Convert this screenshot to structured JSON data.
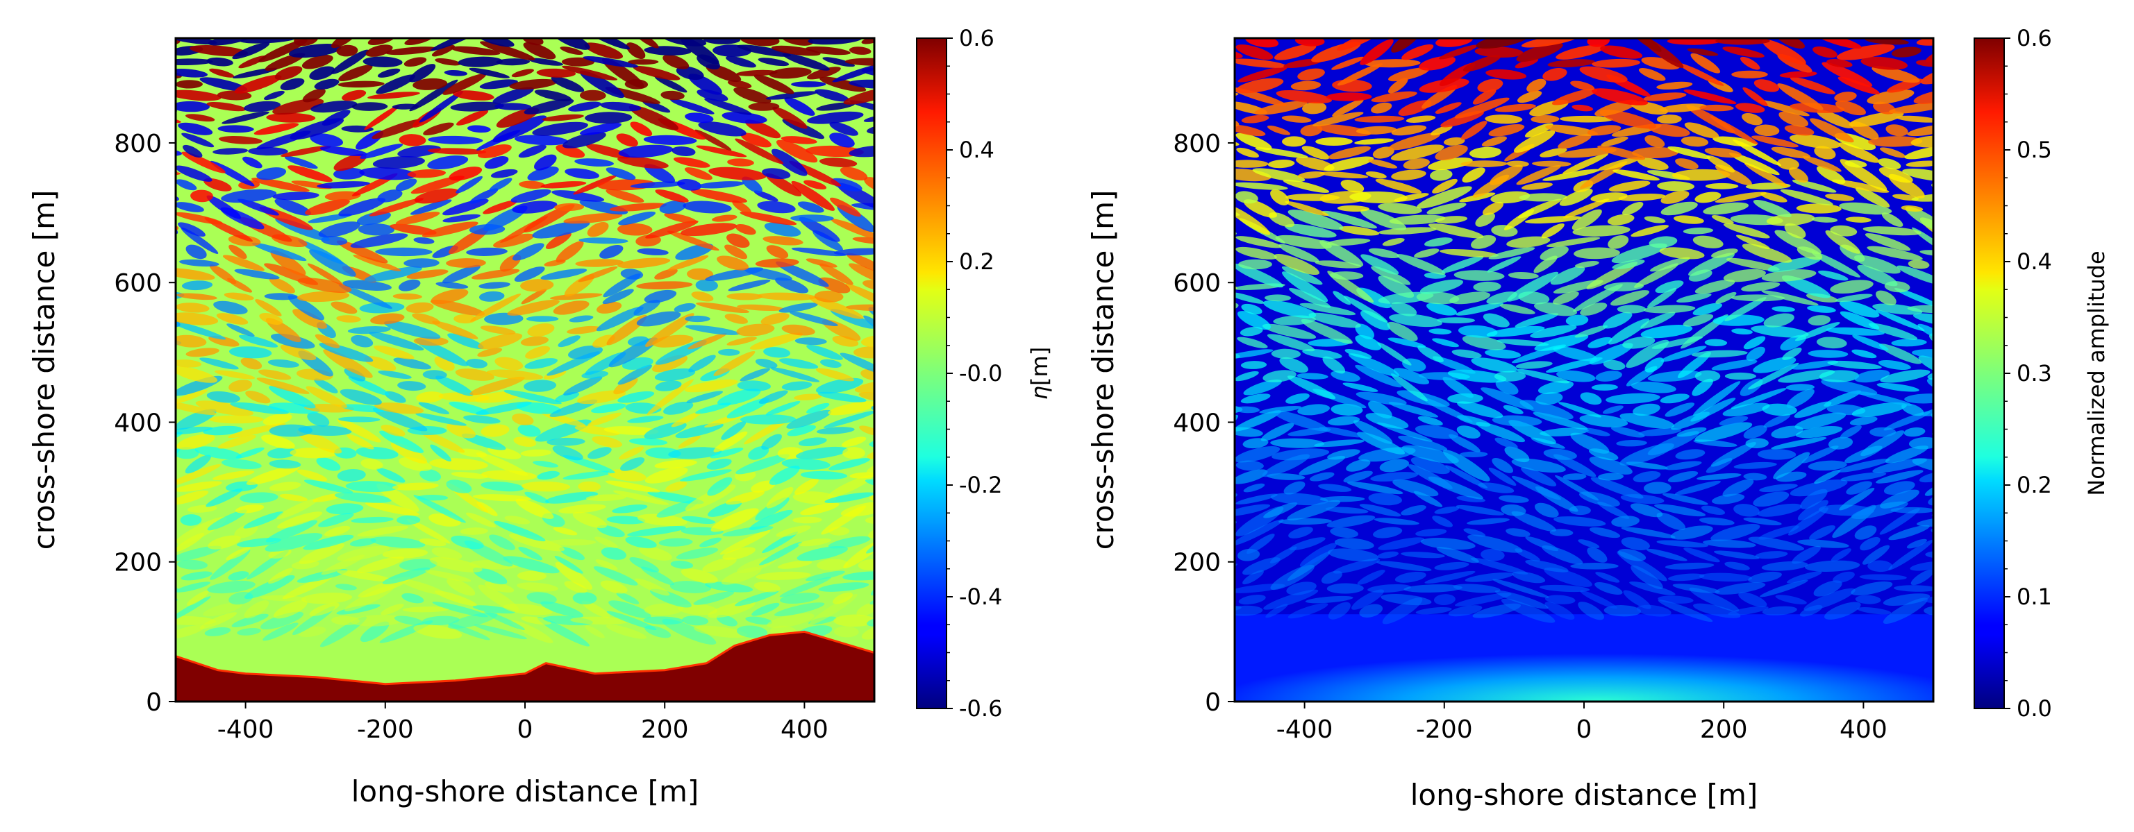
{
  "chart_data": [
    {
      "type": "heatmap",
      "name": "surface-elevation",
      "title": "",
      "xlabel": "long-shore distance [m]",
      "ylabel": "cross-shore distance [m]",
      "xlim": [
        -500,
        500
      ],
      "ylim": [
        0,
        950
      ],
      "xticks": [
        -400,
        -200,
        0,
        200,
        400
      ],
      "xtick_labels": [
        "-400",
        "-200",
        "0",
        "200",
        "400"
      ],
      "yticks": [
        0,
        200,
        400,
        600,
        800
      ],
      "ytick_labels": [
        "0",
        "200",
        "400",
        "600",
        "800"
      ],
      "colormap": "jet",
      "colorbar": {
        "label": "η[m]",
        "label_symbol": "η",
        "label_unit": "[m]",
        "range": [
          -0.6,
          0.6
        ],
        "ticks": [
          0.6,
          0.4,
          0.2,
          0.0,
          -0.2,
          -0.4,
          -0.6
        ],
        "tick_labels": [
          "0.6",
          "0.4",
          "0.2",
          "-0.0",
          "-0.2",
          "-0.4",
          "-0.6"
        ]
      },
      "features": {
        "background_value": 0.05,
        "shoreline_value": 0.6,
        "shoreline_profile": [
          [
            -500,
            65
          ],
          [
            -440,
            45
          ],
          [
            -400,
            40
          ],
          [
            -300,
            35
          ],
          [
            -200,
            25
          ],
          [
            -100,
            30
          ],
          [
            0,
            40
          ],
          [
            30,
            55
          ],
          [
            100,
            40
          ],
          [
            200,
            45
          ],
          [
            260,
            55
          ],
          [
            300,
            80
          ],
          [
            350,
            95
          ],
          [
            400,
            100
          ],
          [
            450,
            85
          ],
          [
            500,
            70
          ]
        ]
      }
    },
    {
      "type": "heatmap",
      "name": "normalized-amplitude",
      "title": "",
      "xlabel": "long-shore distance [m]",
      "ylabel": "cross-shore distance [m]",
      "xlim": [
        -500,
        500
      ],
      "ylim": [
        0,
        950
      ],
      "xticks": [
        -400,
        -200,
        0,
        200,
        400
      ],
      "xtick_labels": [
        "-400",
        "-200",
        "0",
        "200",
        "400"
      ],
      "yticks": [
        0,
        200,
        400,
        600,
        800
      ],
      "ytick_labels": [
        "0",
        "200",
        "400",
        "600",
        "800"
      ],
      "colormap": "jet",
      "colorbar": {
        "label": "Normalized amplitude",
        "range": [
          0.0,
          0.6
        ],
        "ticks": [
          0.6,
          0.5,
          0.4,
          0.3,
          0.2,
          0.1,
          0.0
        ],
        "tick_labels": [
          "0.6",
          "0.5",
          "0.4",
          "0.3",
          "0.2",
          "0.1",
          "0.0"
        ]
      },
      "features": {
        "background_value": 0.05,
        "smooth_zone_top": 125,
        "smooth_zone_peak_value": 0.25,
        "smooth_zone_peak_x": 20
      }
    }
  ]
}
